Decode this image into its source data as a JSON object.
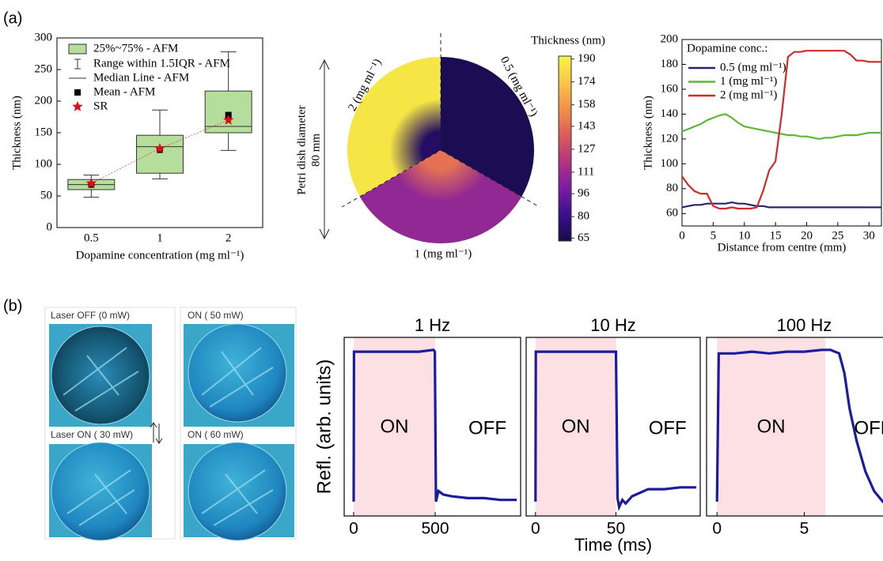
{
  "panel_labels": [
    "(a)",
    "(b)"
  ],
  "photos": {
    "captions": [
      "Laser OFF (0 mW)",
      "ON ( 50 mW)",
      "Laser ON ( 30 mW)",
      "ON ( 60 mW)"
    ]
  },
  "chart_data": [
    {
      "type": "box",
      "ylabel": "Thickness (nm)",
      "xlabel": "Dopamine concentration (mg ml⁻¹)",
      "categories": [
        "0.5",
        "1",
        "2"
      ],
      "ylim": [
        0,
        300
      ],
      "yticks": [
        0,
        50,
        100,
        150,
        200,
        250,
        300
      ],
      "boxes": [
        {
          "q1": 60,
          "median": 68,
          "q3": 76,
          "whisker_low": 48,
          "whisker_high": 83,
          "mean": 68
        },
        {
          "q1": 86,
          "median": 128,
          "q3": 146,
          "whisker_low": 77,
          "whisker_high": 186,
          "mean": 123
        },
        {
          "q1": 150,
          "median": 160,
          "q3": 216,
          "whisker_low": 122,
          "whisker_high": 278,
          "mean": 178
        }
      ],
      "sr_values": [
        70,
        125,
        170
      ],
      "box_color": "#b5dd9c",
      "mean_color": "#000000",
      "sr_color": "#d8121b",
      "legend": [
        "25%~75% - AFM",
        "Range within 1.5IQR - AFM",
        "Median Line - AFM",
        "Mean - AFM",
        "SR"
      ]
    },
    {
      "type": "polar-heatmap",
      "colorbar_label": "Thickness (nm)",
      "side_label": "Petri dish diameter",
      "side_sublabel": "80 mm",
      "clim": [
        63,
        192
      ],
      "colorbar_ticks": [
        65,
        80,
        96,
        111,
        127,
        143,
        158,
        174,
        190
      ],
      "colormap": [
        "#160c4a",
        "#3b0f8a",
        "#7a1da3",
        "#b1357f",
        "#db5b5b",
        "#f2904a",
        "#f7c64a",
        "#f5f542"
      ],
      "sectors": [
        {
          "label": "2 (mg ml⁻¹)",
          "center": 70,
          "edge": 186
        },
        {
          "label": "0.5 (mg ml⁻¹)",
          "center": 66,
          "edge": 66
        },
        {
          "label": "1 (mg ml⁻¹)",
          "center": 145,
          "edge": 108
        }
      ]
    },
    {
      "type": "line",
      "ylabel": "Thickness (nm)",
      "xlabel": "Distance from centre (mm)",
      "legend_title": "Dopamine conc.:",
      "xlim": [
        0,
        32
      ],
      "xticks": [
        0,
        5,
        10,
        15,
        20,
        25,
        30
      ],
      "ylim": [
        50,
        200
      ],
      "yticks": [
        60,
        80,
        100,
        120,
        140,
        160,
        180,
        200
      ],
      "x": [
        0,
        1,
        2,
        3,
        4,
        5,
        6,
        7,
        8,
        9,
        10,
        11,
        12,
        13,
        14,
        15,
        16,
        17,
        18,
        19,
        20,
        21,
        22,
        23,
        24,
        25,
        26,
        27,
        28,
        29,
        30,
        31,
        32
      ],
      "series": [
        {
          "name": "0.5 (mg ml⁻¹)",
          "color": "#2a2470",
          "values": [
            65,
            66,
            67,
            67,
            68,
            68,
            68,
            68,
            69,
            68,
            68,
            67,
            66,
            66,
            65,
            65,
            65,
            65,
            65,
            65,
            65,
            65,
            65,
            65,
            65,
            65,
            65,
            65,
            65,
            65,
            65,
            65,
            65
          ]
        },
        {
          "name": "1 (mg ml⁻¹)",
          "color": "#5cb836",
          "values": [
            126,
            128,
            130,
            132,
            135,
            137,
            139,
            140,
            137,
            133,
            130,
            129,
            128,
            127,
            126,
            125,
            124,
            123,
            123,
            122,
            122,
            121,
            120,
            121,
            121,
            122,
            123,
            123,
            123,
            124,
            125,
            125,
            125
          ]
        },
        {
          "name": "2 (mg ml⁻¹)",
          "color": "#d42a27",
          "values": [
            90,
            83,
            78,
            76,
            76,
            66,
            64,
            64,
            65,
            64,
            64,
            64,
            65,
            78,
            95,
            102,
            140,
            186,
            190,
            190,
            191,
            191,
            191,
            191,
            191,
            191,
            191,
            188,
            183,
            183,
            182,
            182,
            182
          ]
        }
      ]
    },
    {
      "type": "line",
      "title": "1 Hz",
      "ylabel": "Refl. (arb. units)",
      "xlim": [
        -58,
        1024
      ],
      "xticks": [
        0,
        500
      ],
      "ylim": [
        0,
        1
      ],
      "color": "#1c1ca0",
      "shade_color": "#fde0e4",
      "on_span": [
        0,
        500
      ],
      "annotations": [
        "ON",
        "OFF"
      ],
      "x": [
        0,
        2,
        10,
        100,
        200,
        300,
        400,
        490,
        498,
        505,
        520,
        550,
        600,
        700,
        800,
        900,
        1000
      ],
      "values": [
        0.08,
        0.92,
        0.92,
        0.92,
        0.92,
        0.92,
        0.92,
        0.93,
        0.92,
        0.08,
        0.14,
        0.12,
        0.11,
        0.1,
        0.1,
        0.09,
        0.09
      ]
    },
    {
      "type": "line",
      "title": "10 Hz",
      "xlabel": "Time (ms)",
      "xlim": [
        -5.8,
        102.4
      ],
      "xticks": [
        0,
        50
      ],
      "ylim": [
        0,
        1
      ],
      "color": "#1c1ca0",
      "shade_color": "#fde0e4",
      "on_span": [
        0,
        50
      ],
      "annotations": [
        "ON",
        "OFF"
      ],
      "x": [
        0,
        0.2,
        1,
        10,
        20,
        30,
        40,
        49,
        50,
        51,
        52,
        54,
        56,
        60,
        65,
        70,
        80,
        90,
        100
      ],
      "values": [
        0.08,
        0.92,
        0.92,
        0.92,
        0.92,
        0.92,
        0.92,
        0.92,
        0.92,
        0.1,
        0.05,
        0.09,
        0.07,
        0.11,
        0.13,
        0.15,
        0.15,
        0.16,
        0.16
      ]
    },
    {
      "type": "line",
      "title": "100 Hz",
      "xlim": [
        -0.6,
        10.6
      ],
      "xticks": [
        0,
        5
      ],
      "ylim": [
        0,
        1
      ],
      "color": "#1c1ca0",
      "shade_color": "#fde0e4",
      "on_span": [
        0,
        6.2
      ],
      "annotations": [
        "ON",
        "OFF"
      ],
      "x": [
        0,
        0.1,
        1,
        2,
        3,
        4,
        5,
        6,
        6.5,
        7,
        7.3,
        7.6,
        8,
        8.5,
        9,
        9.5,
        10,
        10.5
      ],
      "values": [
        0.08,
        0.91,
        0.91,
        0.92,
        0.91,
        0.92,
        0.92,
        0.93,
        0.93,
        0.91,
        0.8,
        0.6,
        0.42,
        0.25,
        0.14,
        0.08,
        0.05,
        0.03
      ]
    }
  ]
}
